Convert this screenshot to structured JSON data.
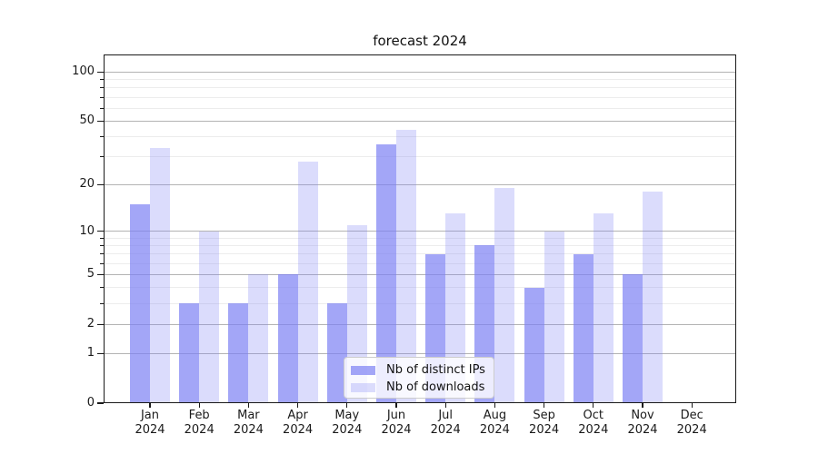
{
  "chart_data": {
    "type": "bar",
    "title": "forecast 2024",
    "categories": [
      {
        "month": "Jan",
        "year": "2024"
      },
      {
        "month": "Feb",
        "year": "2024"
      },
      {
        "month": "Mar",
        "year": "2024"
      },
      {
        "month": "Apr",
        "year": "2024"
      },
      {
        "month": "May",
        "year": "2024"
      },
      {
        "month": "Jun",
        "year": "2024"
      },
      {
        "month": "Jul",
        "year": "2024"
      },
      {
        "month": "Aug",
        "year": "2024"
      },
      {
        "month": "Sep",
        "year": "2024"
      },
      {
        "month": "Oct",
        "year": "2024"
      },
      {
        "month": "Nov",
        "year": "2024"
      },
      {
        "month": "Dec",
        "year": "2024"
      }
    ],
    "series": [
      {
        "name": "Nb of distinct IPs",
        "color": "#7c80f3",
        "alpha": 0.7,
        "values": [
          15,
          3,
          3,
          5,
          3,
          36,
          7,
          8,
          4,
          7,
          5,
          0
        ]
      },
      {
        "name": "Nb of downloads",
        "color": "#7c80f3",
        "alpha": 0.28,
        "values": [
          34,
          10,
          5,
          28,
          11,
          44,
          13,
          19,
          10,
          13,
          18,
          0
        ]
      }
    ],
    "yscale": "symlog (log1p)",
    "ylim": [
      0,
      128
    ],
    "y_major_ticks": [
      0,
      1,
      2,
      5,
      10,
      20,
      50,
      100
    ],
    "y_minor_ticks": [
      3,
      4,
      6,
      7,
      8,
      9,
      30,
      40,
      60,
      70,
      80,
      90
    ],
    "grid": "horizontal",
    "legend_position": "bottom-center",
    "colors": {
      "axis": "#1a1a1a",
      "grid_major": "#b3b3b3",
      "grid_minor": "#ececec",
      "legend_border": "#cccccc",
      "background": "#ffffff"
    }
  }
}
